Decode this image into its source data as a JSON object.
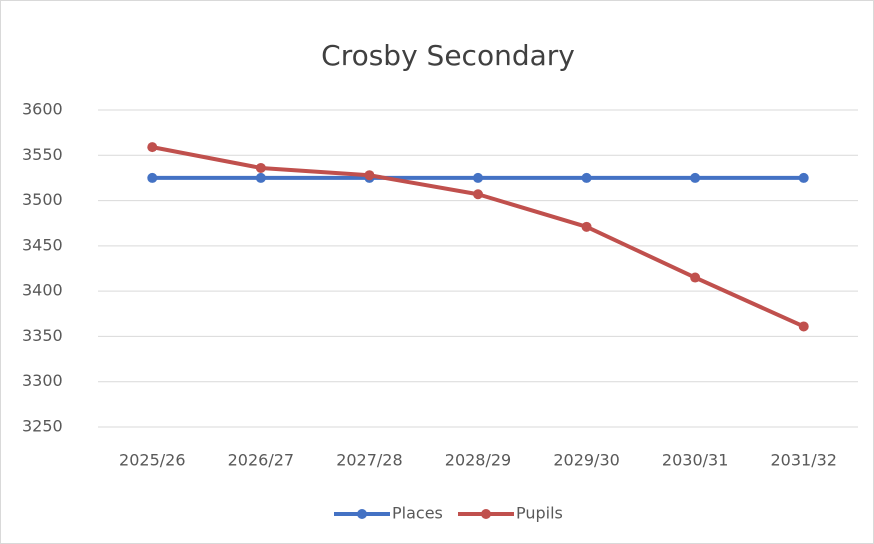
{
  "chart_data": {
    "type": "line",
    "title": "Crosby Secondary",
    "categories": [
      "2025/26",
      "2026/27",
      "2027/28",
      "2028/29",
      "2029/30",
      "2030/31",
      "2031/32"
    ],
    "series": [
      {
        "name": "Places",
        "color": "#4472c4",
        "values": [
          3525,
          3525,
          3525,
          3525,
          3525,
          3525,
          3525
        ]
      },
      {
        "name": "Pupils",
        "color": "#c0504d",
        "values": [
          3559,
          3536,
          3528,
          3507,
          3471,
          3415,
          3361
        ]
      }
    ],
    "ylim": [
      3250,
      3600
    ],
    "yticks": [
      3250,
      3300,
      3350,
      3400,
      3450,
      3500,
      3550,
      3600
    ],
    "grid": true,
    "legend": "bottom"
  }
}
